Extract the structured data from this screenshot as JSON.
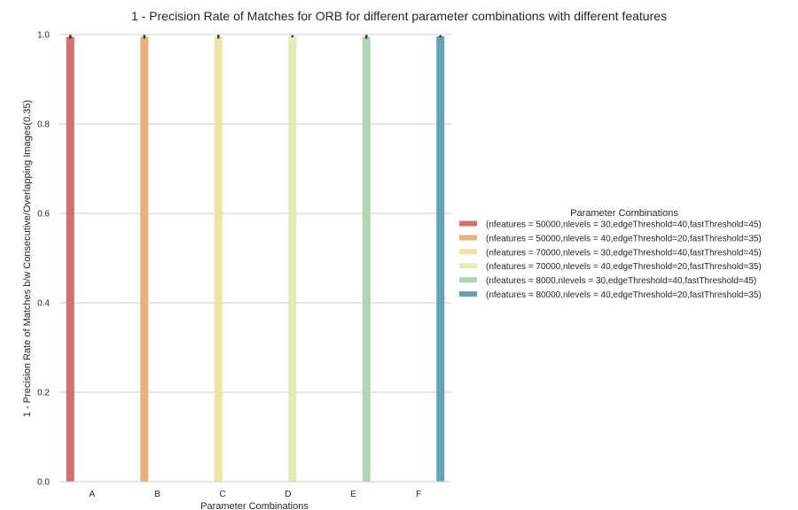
{
  "chart_data": {
    "type": "bar",
    "title": "1 - Precision Rate of Matches for ORB for different parameter combinations with different features",
    "xlabel": "Parameter Combinations",
    "ylabel": "1 - Precision Rate of Matches b/w Consecutive/Overlapping Images(0.35)",
    "categories": [
      "A",
      "B",
      "C",
      "D",
      "E",
      "F"
    ],
    "ylim": [
      0,
      1.0
    ],
    "yticks": [
      "0.0",
      "0.2",
      "0.4",
      "0.6",
      "0.8",
      "1.0"
    ],
    "grid": true,
    "legend_position": "right",
    "legend_title": "Parameter Combinations",
    "series": [
      {
        "name": "(nfeatures = 50000,nlevels = 30,edgeThreshold=40,fastThreshold=45)",
        "color": "#d4706b",
        "values": [
          0.995,
          null,
          null,
          null,
          null,
          null
        ],
        "error": [
          0.008,
          null,
          null,
          null,
          null,
          null
        ]
      },
      {
        "name": "(nfeatures = 50000,nlevels = 40,edgeThreshold=20,fastThreshold=35)",
        "color": "#e8b07c",
        "values": [
          null,
          0.995,
          null,
          null,
          null,
          null
        ],
        "error": [
          null,
          0.008,
          null,
          null,
          null,
          null
        ]
      },
      {
        "name": "(nfeatures = 70000,nlevels = 30,edgeThreshold=40,fastThreshold=45)",
        "color": "#f2e2a6",
        "values": [
          null,
          null,
          0.995,
          null,
          null,
          null
        ],
        "error": [
          null,
          null,
          0.008,
          null,
          null,
          null
        ]
      },
      {
        "name": "(nfeatures = 70000,nlevels = 40,edgeThreshold=20,fastThreshold=35)",
        "color": "#e3ecb6",
        "values": [
          null,
          null,
          null,
          0.996,
          null,
          null
        ],
        "error": [
          null,
          null,
          null,
          0.005,
          null,
          null
        ]
      },
      {
        "name": "(nfeatures = 8000,nlevels = 30,edgeThreshold=40,fastThreshold=45)",
        "color": "#aed6b0",
        "values": [
          null,
          null,
          null,
          null,
          0.995,
          null
        ],
        "error": [
          null,
          null,
          null,
          null,
          0.008,
          null
        ]
      },
      {
        "name": "(nfeatures = 80000,nlevels = 40,edgeThreshold=20,fastThreshold=35)",
        "color": "#66a2b0",
        "values": [
          null,
          null,
          null,
          null,
          null,
          0.996
        ],
        "error": [
          null,
          null,
          null,
          null,
          null,
          0.005
        ]
      }
    ]
  }
}
